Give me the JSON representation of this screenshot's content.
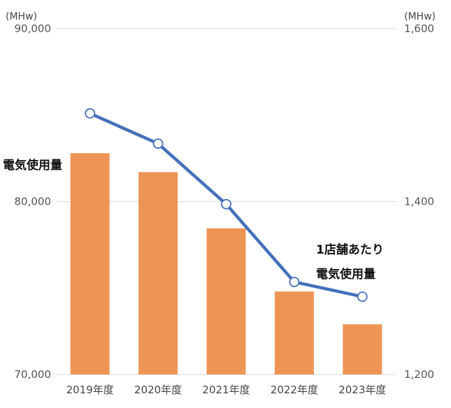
{
  "chart_data": {
    "type": "bar",
    "categories": [
      "2019年度",
      "2020年度",
      "2021年度",
      "2022年度",
      "2023年度"
    ],
    "series": [
      {
        "name": "電気使用量",
        "type": "bar",
        "axis": "left",
        "color": "#EE9556",
        "values": [
          82800,
          81700,
          78450,
          74800,
          72900
        ]
      },
      {
        "name": "1店舗あたり 電気使用量",
        "name_lines": [
          "1店舗あたり",
          "電気使用量"
        ],
        "type": "line",
        "axis": "right",
        "color": "#4470BA",
        "values": [
          1502,
          1467,
          1397,
          1307,
          1290
        ]
      }
    ],
    "y_left": {
      "unit": "(MHw)",
      "ylim": [
        70000,
        90000
      ],
      "ticks": [
        "70,000",
        "80,000",
        "90,000"
      ],
      "tick_values": [
        70000,
        80000,
        90000
      ]
    },
    "y_right": {
      "unit": "(MHw)",
      "ylim": [
        1200,
        1600
      ],
      "ticks": [
        "1,200",
        "1,400",
        "1,600"
      ],
      "tick_values": [
        1200,
        1400,
        1600
      ]
    },
    "grid": true
  }
}
